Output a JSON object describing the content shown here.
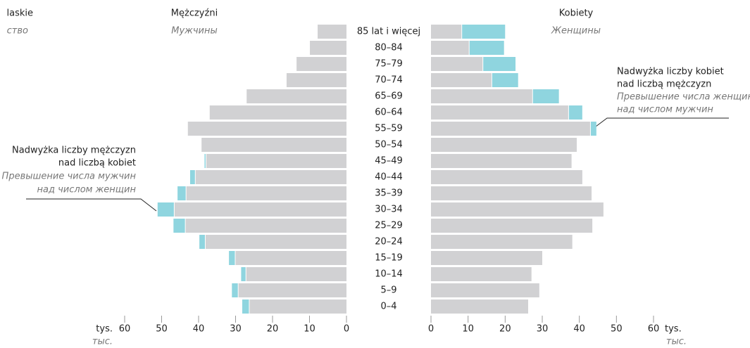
{
  "chart_data": {
    "type": "pyramid",
    "corner_title": "laskie",
    "corner_subtitle": "ство",
    "categories": [
      "85 lat i więcej",
      "80–84",
      "75–79",
      "70–74",
      "65–69",
      "60–64",
      "55–59",
      "50–54",
      "45–49",
      "40–44",
      "35–39",
      "30–34",
      "25–29",
      "20–24",
      "15–19",
      "10–14",
      "5–9",
      "0–4"
    ],
    "left": {
      "title": "Mężczyźni",
      "subtitle": "Мужчины",
      "values": [
        7.8,
        9.9,
        13.5,
        16.2,
        27.0,
        37.0,
        42.9,
        39.2,
        37.9,
        40.8,
        43.3,
        46.5,
        43.5,
        38.1,
        30.0,
        27.1,
        29.2,
        26.2
      ],
      "excess": [
        0,
        0,
        0,
        0,
        0,
        0,
        0,
        0,
        0.3,
        1.3,
        2.2,
        4.4,
        3.1,
        1.5,
        1.6,
        1.2,
        1.6,
        1.8
      ],
      "xlim": [
        60,
        0
      ],
      "xticks": [
        60,
        50,
        40,
        30,
        20,
        10,
        0
      ],
      "unit": "tys.",
      "unit_ru": "тыс."
    },
    "right": {
      "title": "Kobiety",
      "subtitle": "Женщины",
      "values": [
        8.2,
        10.2,
        13.9,
        16.3,
        27.3,
        37.0,
        42.9,
        39.3,
        37.9,
        40.8,
        43.3,
        46.5,
        43.5,
        38.1,
        30.0,
        27.1,
        29.2,
        26.2
      ],
      "excess": [
        11.6,
        9.3,
        8.7,
        7.0,
        7.0,
        3.6,
        1.5,
        0,
        0,
        0,
        0,
        0,
        0,
        0,
        0,
        0,
        0,
        0
      ],
      "xlim": [
        0,
        60
      ],
      "xticks": [
        0,
        10,
        20,
        30,
        40,
        50,
        60
      ],
      "unit": "tys.",
      "unit_ru": "тыс."
    },
    "base_color": "#d1d1d3",
    "excess_color": "#8fd5df",
    "annotations": [
      {
        "lines": [
          "Nadwyżka liczby kobiet",
          "nad liczbą mężczyzn"
        ],
        "lines_ru": [
          "Превышение числа женщин",
          "над числом мужчин"
        ]
      },
      {
        "lines": [
          "Nadwyżka liczby mężczyzn",
          "nad liczbą kobiet"
        ],
        "lines_ru": [
          "Превышение числа мужчин",
          "над числом женщин"
        ]
      }
    ]
  }
}
